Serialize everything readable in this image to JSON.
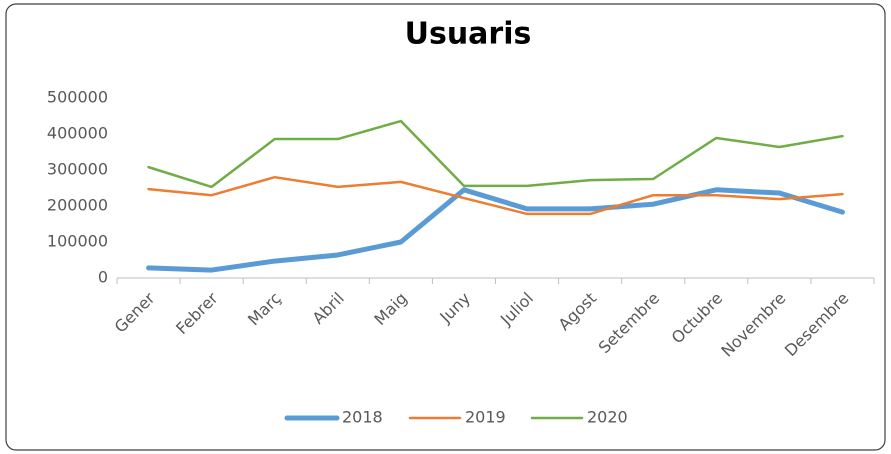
{
  "chart_data": {
    "type": "line",
    "title": "Usuaris",
    "categories": [
      "Gener",
      "Febrer",
      "Març",
      "Abril",
      "Maig",
      "Juny",
      "Juliol",
      "Agost",
      "Setembre",
      "Octubre",
      "Novembre",
      "Desembre"
    ],
    "series": [
      {
        "name": "2018",
        "color": "#5b9bd5",
        "values": [
          28000,
          22000,
          47000,
          64000,
          100000,
          245000,
          192000,
          192000,
          205000,
          245000,
          236000,
          183000
        ]
      },
      {
        "name": "2019",
        "color": "#ed7d31",
        "values": [
          247000,
          230000,
          280000,
          253000,
          267000,
          222000,
          178000,
          178000,
          230000,
          230000,
          219000,
          233000
        ]
      },
      {
        "name": "2020",
        "color": "#70ad47",
        "values": [
          308000,
          253000,
          386000,
          386000,
          436000,
          256000,
          256000,
          272000,
          275000,
          389000,
          364000,
          394000
        ]
      }
    ],
    "ylim": [
      0,
      500000
    ],
    "yticks": [
      0,
      100000,
      200000,
      300000,
      400000,
      500000
    ],
    "grid": false,
    "legend": "bottom"
  }
}
